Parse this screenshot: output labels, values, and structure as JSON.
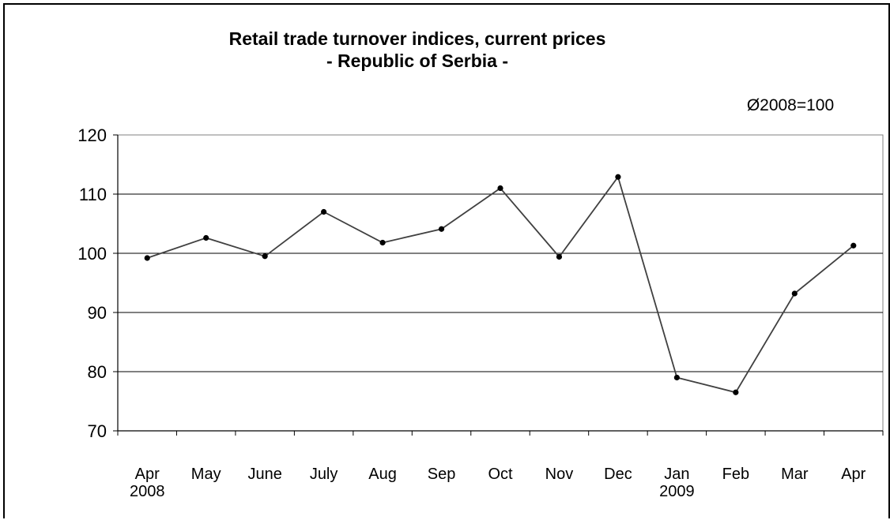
{
  "chart_data": {
    "type": "line",
    "title": "Retail trade turnover indices, current prices",
    "subtitle": "- Republic of Serbia -",
    "note": "Ø2008=100",
    "xlabel": "",
    "ylabel": "",
    "ylim": [
      70,
      120
    ],
    "yticks": [
      "70",
      "80",
      "90",
      "100",
      "110",
      "120"
    ],
    "grid": true,
    "categories": [
      {
        "label": "Apr",
        "sub": "2008"
      },
      {
        "label": "May",
        "sub": ""
      },
      {
        "label": "June",
        "sub": ""
      },
      {
        "label": "July",
        "sub": ""
      },
      {
        "label": "Aug",
        "sub": ""
      },
      {
        "label": "Sep",
        "sub": ""
      },
      {
        "label": "Oct",
        "sub": ""
      },
      {
        "label": "Nov",
        "sub": ""
      },
      {
        "label": "Dec",
        "sub": ""
      },
      {
        "label": "Jan",
        "sub": "2009"
      },
      {
        "label": "Feb",
        "sub": ""
      },
      {
        "label": "Mar",
        "sub": ""
      },
      {
        "label": "Apr",
        "sub": ""
      }
    ],
    "series": [
      {
        "values": [
          99.2,
          102.6,
          99.5,
          107.0,
          101.8,
          104.1,
          111.0,
          99.4,
          112.9,
          79.0,
          76.5,
          93.2,
          101.3
        ]
      }
    ],
    "colors": {
      "line": "#404040",
      "marker": "#000000",
      "grid": "#000000"
    }
  }
}
